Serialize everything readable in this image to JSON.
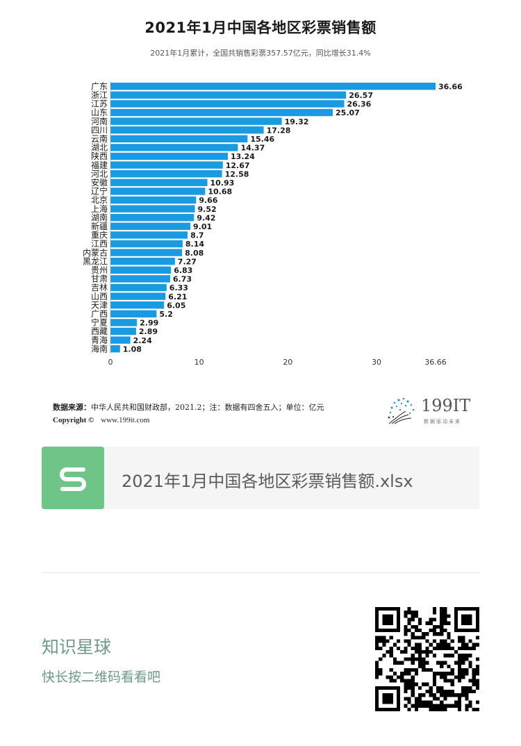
{
  "chart_data": {
    "type": "bar",
    "orientation": "horizontal",
    "title": "2021年1月中国各地区彩票销售额",
    "subtitle": "2021年1月累计，全国共销售彩票357.57亿元，同比增长31.4%",
    "categories": [
      "广东",
      "浙江",
      "江苏",
      "山东",
      "河南",
      "四川",
      "云南",
      "湖北",
      "陕西",
      "福建",
      "河北",
      "安徽",
      "辽宁",
      "北京",
      "上海",
      "湖南",
      "新疆",
      "重庆",
      "江西",
      "内蒙古",
      "黑龙江",
      "贵州",
      "甘肃",
      "吉林",
      "山西",
      "天津",
      "广西",
      "宁夏",
      "西藏",
      "青海",
      "海南"
    ],
    "values": [
      36.66,
      26.57,
      26.36,
      25.07,
      19.32,
      17.28,
      15.46,
      14.37,
      13.24,
      12.67,
      12.58,
      10.93,
      10.68,
      9.66,
      9.52,
      9.42,
      9.01,
      8.7,
      8.14,
      8.08,
      7.27,
      6.83,
      6.73,
      6.33,
      6.21,
      6.05,
      5.2,
      2.99,
      2.89,
      2.24,
      1.08
    ],
    "value_labels": [
      "36.66",
      "26.57",
      "26.36",
      "25.07",
      "19.32",
      "17.28",
      "15.46",
      "14.37",
      "13.24",
      "12.67",
      "12.58",
      "10.93",
      "10.68",
      "9.66",
      "9.52",
      "9.42",
      "9.01",
      "8.7",
      "8.14",
      "8.08",
      "7.27",
      "6.83",
      "6.73",
      "6.33",
      "6.21",
      "6.05",
      "5.2",
      "2.99",
      "2.89",
      "2.24",
      "1.08"
    ],
    "xticks": [
      "0",
      "10",
      "20",
      "30",
      "36.66"
    ],
    "xtick_values": [
      0,
      10,
      20,
      30,
      36.66
    ],
    "xlim": [
      0,
      36.66
    ],
    "bar_color": "#1a9ae0",
    "grid": false,
    "legend": "none"
  },
  "footer": {
    "source_label": "数据来源：",
    "source_text": "中华人民共和国财政部，2021.2；注：数据有四舍五入；单位：亿元",
    "copyright_label": "Copyright ©",
    "copyright_site": "www.199it.com",
    "logo_text": "199IT",
    "logo_tagline": "数据驱动未来"
  },
  "file_card": {
    "icon_letter": "S",
    "icon_color": "#6fc487",
    "file_name": "2021年1月中国各地区彩票销售额.xlsx"
  },
  "planet": {
    "title": "知识星球",
    "subtitle": "快长按二维码看看吧"
  }
}
